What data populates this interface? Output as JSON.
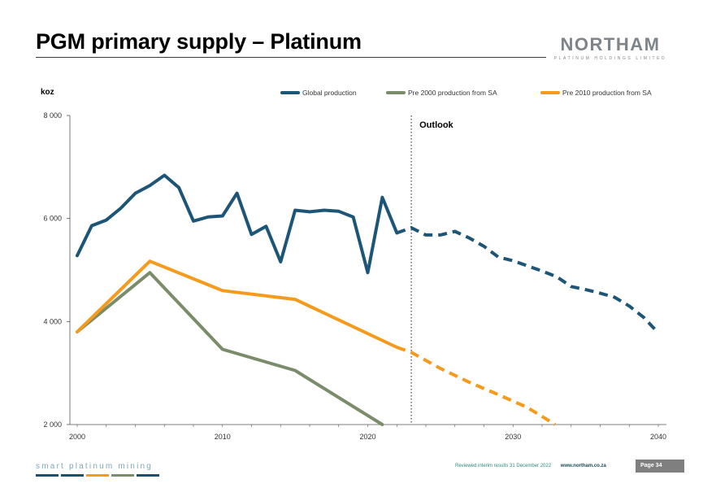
{
  "header": {
    "title": "PGM primary supply – Platinum"
  },
  "logo": {
    "name": "NORTHAM",
    "tagline": "PLATINUM HOLDINGS LIMITED"
  },
  "footer": {
    "tagline": "smart platinum mining",
    "bar_colors": [
      "#1d4f6e",
      "#1d4f6e",
      "#f59a1b",
      "#7a8c6a",
      "#1d4f6e"
    ],
    "report": "Reviewed interim results 31 December 2022",
    "website": "www.northam.co.za",
    "page": "Page 34"
  },
  "chart_data": {
    "type": "line",
    "title": "",
    "ylabel": "koz",
    "xlabel": "",
    "xlim": [
      2000,
      2040
    ],
    "ylim": [
      2000,
      8000
    ],
    "x_ticks": [
      2000,
      2010,
      2020,
      2030,
      2040
    ],
    "y_ticks": [
      2000,
      4000,
      6000,
      8000
    ],
    "y_tick_labels": [
      "2 000",
      "4 000",
      "6 000",
      "8 000"
    ],
    "annotation": {
      "label": "Outlook",
      "x": 2023
    },
    "series": [
      {
        "name": "Global production",
        "color": "#1d5577",
        "actual": {
          "x": [
            2000,
            2001,
            2002,
            2003,
            2004,
            2005,
            2006,
            2007,
            2008,
            2009,
            2010,
            2011,
            2012,
            2013,
            2014,
            2015,
            2016,
            2017,
            2018,
            2019,
            2020,
            2021,
            2022
          ],
          "y": [
            5280,
            5860,
            5970,
            6200,
            6490,
            6640,
            6840,
            6600,
            5950,
            6030,
            6050,
            6490,
            5690,
            5850,
            5160,
            6160,
            6130,
            6160,
            6140,
            6030,
            4950,
            6410,
            5720
          ]
        },
        "forecast": {
          "x": [
            2022,
            2023,
            2024,
            2025,
            2026,
            2027,
            2028,
            2029,
            2030,
            2031,
            2032,
            2033,
            2034,
            2035,
            2036,
            2037,
            2038,
            2039,
            2040
          ],
          "y": [
            5720,
            5820,
            5680,
            5680,
            5750,
            5620,
            5460,
            5250,
            5180,
            5080,
            4980,
            4870,
            4680,
            4620,
            4550,
            4470,
            4300,
            4080,
            3780
          ]
        }
      },
      {
        "name": "Pre 2000 production from SA",
        "color": "#7a8c6a",
        "actual": {
          "x": [
            2000,
            2005,
            2010,
            2015,
            2021
          ],
          "y": [
            3800,
            4950,
            3460,
            3050,
            2000
          ]
        },
        "forecast": null
      },
      {
        "name": "Pre 2010 production from SA",
        "color": "#f59a1b",
        "actual": {
          "x": [
            2000,
            2005,
            2010,
            2015,
            2022
          ],
          "y": [
            3800,
            5170,
            4600,
            4430,
            3500
          ]
        },
        "forecast": {
          "x": [
            2022,
            2023,
            2025,
            2027,
            2029,
            2031,
            2032.9
          ],
          "y": [
            3500,
            3400,
            3090,
            2820,
            2580,
            2330,
            2000
          ]
        }
      }
    ]
  }
}
